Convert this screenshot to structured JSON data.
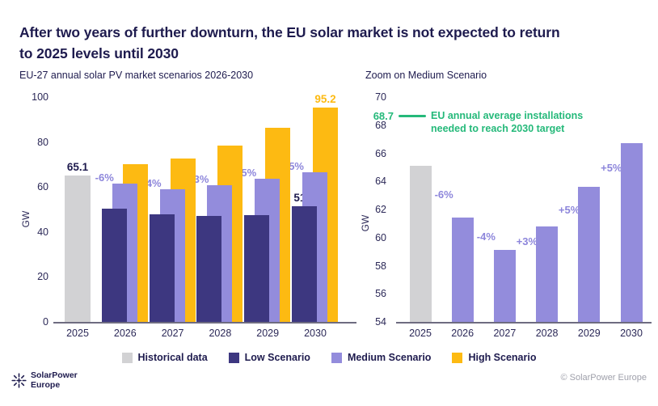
{
  "title_lines": [
    "After two years of further downturn, the EU solar market is not expected to return",
    "to 2025 levels until 2030"
  ],
  "colors": {
    "navy": "#1E1B4E",
    "historical": "#D2D2D4",
    "low": "#3D3780",
    "medium": "#938CDC",
    "high": "#FDBA12",
    "green": "#25B97A",
    "pct_label": "#8D86DB"
  },
  "chart_data": [
    {
      "type": "bar",
      "title": "EU-27 annual solar PV market scenarios 2026-2030",
      "ylabel": "GW",
      "xlabel": "",
      "ylim": [
        0,
        100
      ],
      "yticks": [
        0,
        20,
        40,
        60,
        80,
        100
      ],
      "grid": false,
      "categories": [
        "2025",
        "2026",
        "2027",
        "2028",
        "2029",
        "2030"
      ],
      "series": [
        {
          "name": "Historical data",
          "color": "#D2D2D4",
          "values": [
            65.1,
            null,
            null,
            null,
            null,
            null
          ]
        },
        {
          "name": "Low Scenario",
          "color": "#3D3780",
          "values": [
            null,
            50.5,
            48,
            47,
            47.5,
            51.5
          ]
        },
        {
          "name": "Medium Scenario",
          "color": "#938CDC",
          "values": [
            null,
            61.4,
            59.1,
            60.8,
            63.6,
            66.7
          ]
        },
        {
          "name": "High Scenario",
          "color": "#FDBA12",
          "values": [
            null,
            70,
            72.5,
            78.5,
            86.5,
            95.2
          ]
        }
      ],
      "pct_labels": [
        null,
        "-6%",
        "-4%",
        "+3%",
        "+5%",
        "+5%"
      ],
      "value_labels": [
        {
          "category": "2025",
          "series": "Historical data",
          "text": "65.1",
          "color": "#1E1B4E"
        },
        {
          "category": "2030",
          "series": "Low Scenario",
          "text": "51.5",
          "color": "#1E1B4E"
        },
        {
          "category": "2030",
          "series": "High Scenario",
          "text": "95.2",
          "color": "#FDBA12"
        }
      ]
    },
    {
      "type": "bar",
      "title": "Zoom on Medium Scenario",
      "ylabel": "GW",
      "xlabel": "",
      "ylim": [
        54,
        70
      ],
      "yticks": [
        54,
        56,
        58,
        60,
        62,
        64,
        66,
        68,
        70
      ],
      "grid": false,
      "categories": [
        "2025",
        "2026",
        "2027",
        "2028",
        "2029",
        "2030"
      ],
      "series": [
        {
          "name": "Historical data",
          "color": "#D2D2D4",
          "values": [
            65.1,
            null,
            null,
            null,
            null,
            null
          ]
        },
        {
          "name": "Medium Scenario",
          "color": "#938CDC",
          "values": [
            null,
            61.4,
            59.1,
            60.8,
            63.6,
            66.7
          ]
        }
      ],
      "pct_labels": [
        null,
        "-6%",
        "-4%",
        "+3%",
        "+5%",
        "+5%"
      ],
      "annotation": {
        "value": 68.7,
        "label": "68.7",
        "text_lines": [
          "EU annual average installations",
          "needed to reach 2030 target"
        ],
        "color": "#25B97A"
      }
    }
  ],
  "legend": {
    "items": [
      {
        "label": "Historical data",
        "color": "#D2D2D4"
      },
      {
        "label": "Low Scenario",
        "color": "#3D3780"
      },
      {
        "label": "Medium Scenario",
        "color": "#938CDC"
      },
      {
        "label": "High Scenario",
        "color": "#FDBA12"
      }
    ]
  },
  "footer": {
    "brand_line1": "SolarPower",
    "brand_line2": "Europe",
    "copyright": "© SolarPower Europe"
  }
}
